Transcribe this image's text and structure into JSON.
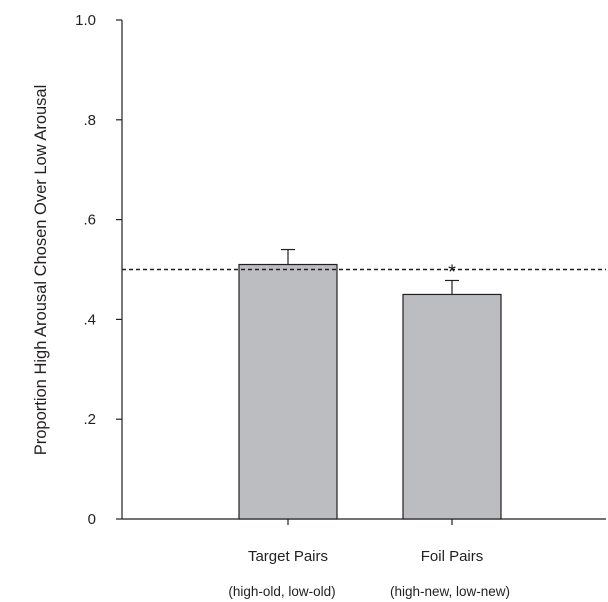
{
  "chart_data": {
    "type": "bar",
    "title": "",
    "xlabel": "",
    "ylabel": "Proportion High Arousal Chosen Over Low Arousal",
    "ylim": [
      0,
      1.0
    ],
    "yticks": [
      0,
      0.2,
      0.4,
      0.6,
      0.8,
      1.0
    ],
    "ytick_labels": [
      "0",
      ".2",
      ".4",
      ".6",
      ".8",
      "1.0"
    ],
    "categories": [
      "Target Pairs",
      "Foil Pairs"
    ],
    "subcategories": [
      "(high-old, low-old)",
      "(high-new, low-new)"
    ],
    "values": [
      0.51,
      0.45
    ],
    "errors": [
      0.03,
      0.028
    ],
    "reference_line": 0.5,
    "significance": [
      "",
      "*"
    ],
    "grid": false,
    "bar_color": "#bcbdc0",
    "outline_color": "#231f20"
  }
}
